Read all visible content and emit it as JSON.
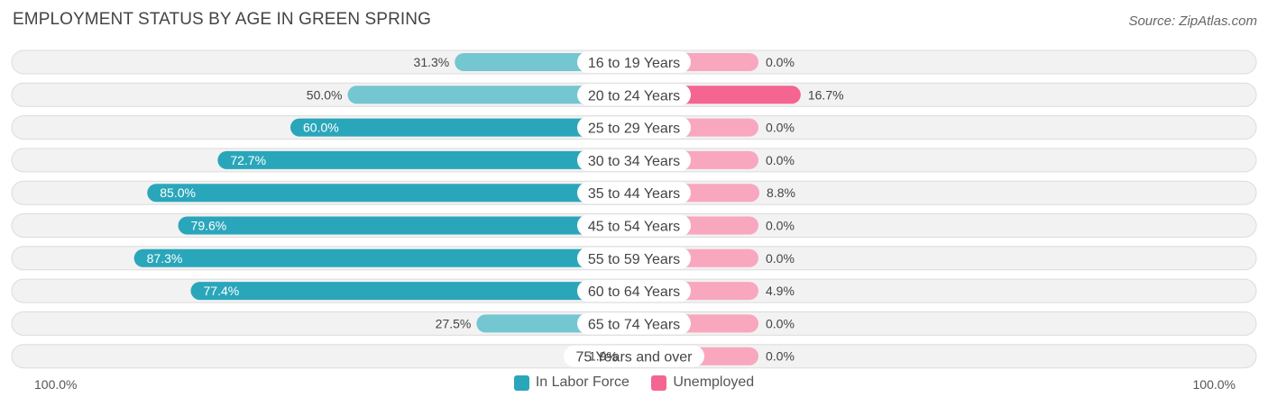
{
  "header": {
    "title": "EMPLOYMENT STATUS BY AGE IN GREEN SPRING",
    "source": "Source: ZipAtlas.com"
  },
  "colors": {
    "labor_dark": "#2aa6ba",
    "labor_light": "#74c6d1",
    "unemp_dark": "#f46591",
    "unemp_light": "#f8a7bf",
    "row_bg": "#f2f2f2"
  },
  "axis": {
    "left_label": "100.0%",
    "right_label": "100.0%"
  },
  "legend": {
    "labor": "In Labor Force",
    "unemployed": "Unemployed"
  },
  "chart_data": {
    "type": "bar",
    "categories": [
      "16 to 19 Years",
      "20 to 24 Years",
      "25 to 29 Years",
      "30 to 34 Years",
      "35 to 44 Years",
      "45 to 54 Years",
      "55 to 59 Years",
      "60 to 64 Years",
      "65 to 74 Years",
      "75 Years and over"
    ],
    "series": [
      {
        "name": "In Labor Force",
        "values": [
          31.3,
          50.0,
          60.0,
          72.7,
          85.0,
          79.6,
          87.3,
          77.4,
          27.5,
          1.9
        ],
        "labels": [
          "31.3%",
          "50.0%",
          "60.0%",
          "72.7%",
          "85.0%",
          "79.6%",
          "87.3%",
          "77.4%",
          "27.5%",
          "1.9%"
        ]
      },
      {
        "name": "Unemployed",
        "values": [
          0.0,
          16.7,
          0.0,
          0.0,
          8.8,
          0.0,
          0.0,
          4.9,
          0.0,
          0.0
        ],
        "labels": [
          "0.0%",
          "16.7%",
          "0.0%",
          "0.0%",
          "8.8%",
          "0.0%",
          "0.0%",
          "4.9%",
          "0.0%",
          "0.0%"
        ]
      }
    ],
    "xlim": [
      -100,
      100
    ],
    "legend_position": "bottom-center"
  }
}
